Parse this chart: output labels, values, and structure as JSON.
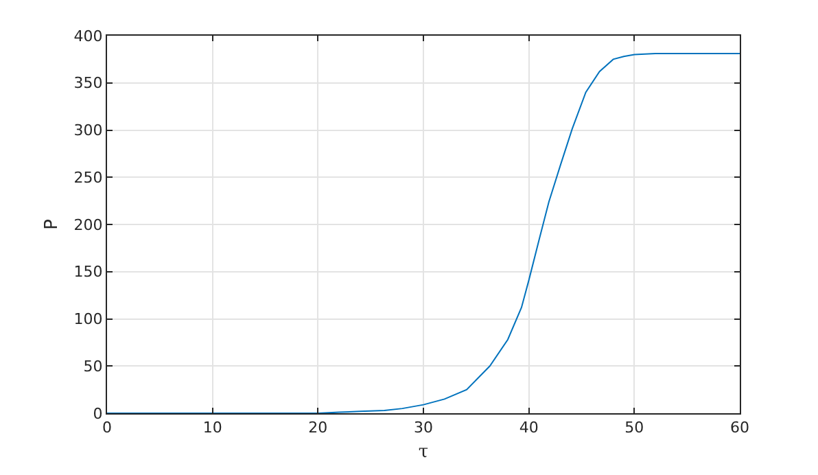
{
  "chart_data": {
    "type": "line",
    "xlabel": "τ",
    "ylabel": "P",
    "x": [
      0,
      10,
      20,
      22,
      24,
      26.3,
      28,
      30,
      32,
      34.1,
      36.3,
      38,
      39.3,
      40,
      41,
      41.9,
      43,
      44.1,
      45.4,
      46.7,
      48,
      49,
      50,
      52,
      55,
      60
    ],
    "series": [
      {
        "color": "#0072bd",
        "values": [
          0,
          0,
          0,
          1,
          2,
          3,
          5,
          9,
          15,
          25,
          50,
          78,
          112,
          141,
          185,
          224,
          263,
          301,
          340,
          362,
          375,
          378,
          380,
          381,
          381,
          381
        ]
      }
    ],
    "xlim": [
      0,
      60
    ],
    "xticks": [
      0,
      10,
      20,
      30,
      40,
      50,
      60
    ],
    "ylim": [
      0,
      400
    ],
    "yticks": [
      0,
      50,
      100,
      150,
      200,
      250,
      300,
      350,
      400
    ],
    "grid": true,
    "marker": "none",
    "line_style": "solid"
  }
}
